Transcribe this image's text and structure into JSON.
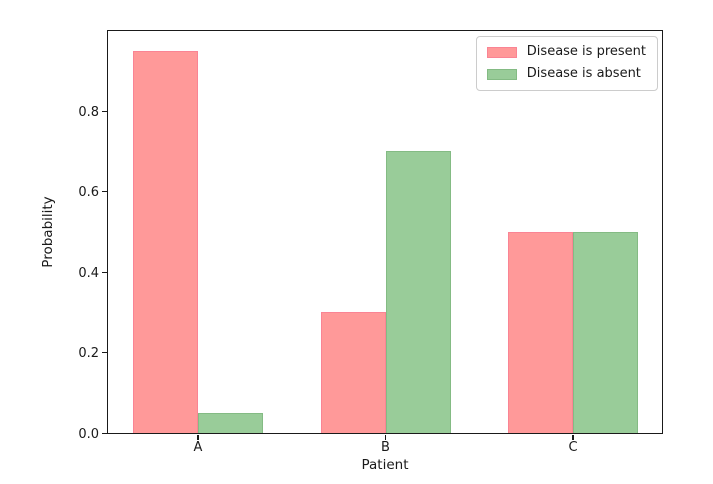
{
  "chart_data": {
    "type": "bar",
    "title": "",
    "xlabel": "Patient",
    "ylabel": "Probability",
    "categories": [
      "A",
      "B",
      "C"
    ],
    "series": [
      {
        "name": "Disease is present",
        "color": "#ff9999",
        "edge_color": "#fa8494",
        "values": [
          0.95,
          0.3,
          0.5
        ]
      },
      {
        "name": "Disease is absent",
        "color": "#99cc99",
        "edge_color": "#84bb84",
        "values": [
          0.05,
          0.7,
          0.5
        ]
      }
    ],
    "ylim": [
      0.0,
      1.0
    ],
    "ytick_labels": [
      "0.0",
      "0.2",
      "0.4",
      "0.6",
      "0.8"
    ],
    "legend_position": "upper right",
    "grid": false,
    "axis_color": "#1a1a1a",
    "legend_border_color": "#cccccc",
    "background_color": "#ffffff"
  }
}
